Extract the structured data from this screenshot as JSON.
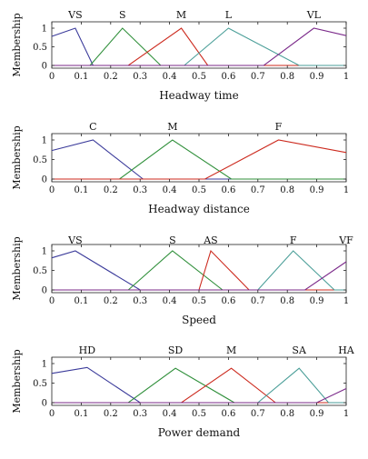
{
  "chart_data": [
    {
      "type": "line",
      "xlabel": "Headway time",
      "ylabel": "Membership",
      "xlim": [
        0,
        1
      ],
      "ylim": [
        0,
        1
      ],
      "x_ticks": [
        "0",
        "0.1",
        "0.2",
        "0.3",
        "0.4",
        "0.5",
        "0.6",
        "0.7",
        "0.8",
        "0.9",
        "1"
      ],
      "y_ticks": [
        "0",
        "0.5",
        "1"
      ],
      "series": [
        {
          "name": "VS",
          "color": "#3a3a9a",
          "x": [
            0,
            0.08,
            0.14,
            1
          ],
          "y": [
            0.78,
            1,
            0,
            0
          ]
        },
        {
          "name": "S",
          "color": "#2f8f3a",
          "x": [
            0,
            0.13,
            0.24,
            0.37,
            1
          ],
          "y": [
            0,
            0,
            1,
            0,
            0
          ]
        },
        {
          "name": "M",
          "color": "#cc2a1e",
          "x": [
            0,
            0.26,
            0.44,
            0.53,
            1
          ],
          "y": [
            0,
            0,
            1,
            0,
            0
          ]
        },
        {
          "name": "L",
          "color": "#4a9e98",
          "x": [
            0,
            0.45,
            0.6,
            0.84,
            1
          ],
          "y": [
            0,
            0,
            1,
            0,
            0
          ]
        },
        {
          "name": "VL",
          "color": "#7b2a8a",
          "x": [
            0,
            0.72,
            0.89,
            1
          ],
          "y": [
            0,
            0,
            1,
            0.8
          ]
        }
      ]
    },
    {
      "type": "line",
      "xlabel": "Headway distance",
      "ylabel": "Membership",
      "xlim": [
        0,
        1
      ],
      "ylim": [
        0,
        1
      ],
      "x_ticks": [
        "0",
        "0.1",
        "0.2",
        "0.3",
        "0.4",
        "0.5",
        "0.6",
        "0.7",
        "0.8",
        "0.9",
        "1"
      ],
      "y_ticks": [
        "0",
        "0.5",
        "1"
      ],
      "series": [
        {
          "name": "C",
          "color": "#3a3a9a",
          "x": [
            0,
            0.14,
            0.31,
            1
          ],
          "y": [
            0.73,
            1,
            0,
            0
          ]
        },
        {
          "name": "M",
          "color": "#2f8f3a",
          "x": [
            0,
            0.23,
            0.41,
            0.61,
            1
          ],
          "y": [
            0,
            0,
            1,
            0,
            0
          ]
        },
        {
          "name": "F",
          "color": "#cc2a1e",
          "x": [
            0,
            0.52,
            0.77,
            1
          ],
          "y": [
            0,
            0,
            1,
            0.68
          ]
        }
      ]
    },
    {
      "type": "line",
      "xlabel": "Speed",
      "ylabel": "Membership",
      "xlim": [
        0,
        1
      ],
      "ylim": [
        0,
        1
      ],
      "x_ticks": [
        "0",
        "0.1",
        "0.2",
        "0.3",
        "0.4",
        "0.5",
        "0.6",
        "0.7",
        "0.8",
        "0.9",
        "1"
      ],
      "y_ticks": [
        "0",
        "0.5",
        "1"
      ],
      "series": [
        {
          "name": "VS",
          "color": "#3a3a9a",
          "x": [
            0,
            0.08,
            0.3,
            1
          ],
          "y": [
            0.82,
            1,
            0,
            0
          ]
        },
        {
          "name": "S",
          "color": "#2f8f3a",
          "x": [
            0,
            0.26,
            0.41,
            0.58,
            1
          ],
          "y": [
            0,
            0,
            1,
            0,
            0
          ]
        },
        {
          "name": "AS",
          "color": "#cc2a1e",
          "x": [
            0,
            0.5,
            0.54,
            0.67,
            1
          ],
          "y": [
            0,
            0,
            1,
            0,
            0
          ]
        },
        {
          "name": "F",
          "color": "#4a9e98",
          "x": [
            0,
            0.7,
            0.82,
            0.96,
            1
          ],
          "y": [
            0,
            0,
            1,
            0,
            0
          ]
        },
        {
          "name": "VF",
          "color": "#7b2a8a",
          "x": [
            0,
            0.86,
            1
          ],
          "y": [
            0,
            0,
            0.72
          ]
        }
      ]
    },
    {
      "type": "line",
      "xlabel": "Power demand",
      "ylabel": "Membership",
      "xlim": [
        0,
        1
      ],
      "ylim": [
        0,
        1
      ],
      "x_ticks": [
        "0",
        "0.1",
        "0.2",
        "0.3",
        "0.4",
        "0.5",
        "0.6",
        "0.7",
        "0.8",
        "0.9",
        "1"
      ],
      "y_ticks": [
        "0",
        "0.5",
        "1"
      ],
      "series": [
        {
          "name": "HD",
          "color": "#3a3a9a",
          "x": [
            0,
            0.12,
            0.3,
            1
          ],
          "y": [
            0.75,
            0.9,
            0,
            0
          ]
        },
        {
          "name": "SD",
          "color": "#2f8f3a",
          "x": [
            0,
            0.26,
            0.42,
            0.62,
            1
          ],
          "y": [
            0,
            0,
            0.88,
            0,
            0
          ]
        },
        {
          "name": "M",
          "color": "#cc2a1e",
          "x": [
            0,
            0.44,
            0.61,
            0.76,
            1
          ],
          "y": [
            0,
            0,
            0.88,
            0,
            0
          ]
        },
        {
          "name": "SA",
          "color": "#4a9e98",
          "x": [
            0,
            0.7,
            0.84,
            0.94,
            1
          ],
          "y": [
            0,
            0,
            0.88,
            0,
            0
          ]
        },
        {
          "name": "HA",
          "color": "#7b2a8a",
          "x": [
            0,
            0.9,
            1
          ],
          "y": [
            0,
            0,
            0.36
          ]
        }
      ]
    }
  ]
}
